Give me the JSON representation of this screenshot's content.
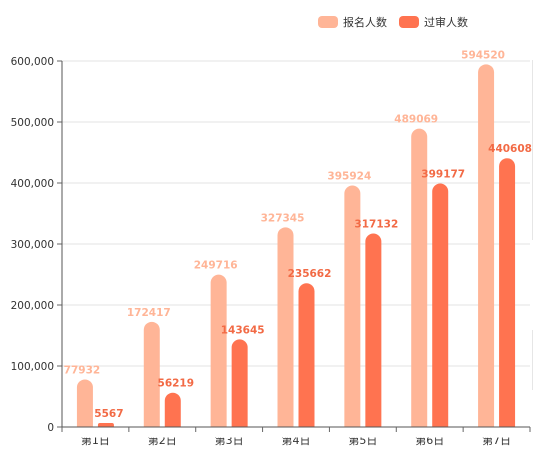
{
  "chart_data": {
    "type": "bar",
    "categories": [
      "第1日",
      "第2日",
      "第3日",
      "第4日",
      "第5日",
      "第6日",
      "第7日"
    ],
    "series": [
      {
        "name": "报名人数",
        "color": "#ffb597",
        "label_color": "#ffb597",
        "values": [
          77932,
          172417,
          249716,
          327345,
          395924,
          489069,
          594520
        ]
      },
      {
        "name": "过审人数",
        "color": "#ff7350",
        "label_color": "#f26a45",
        "values": [
          5567,
          56219,
          143645,
          235662,
          317132,
          399177,
          440608
        ]
      }
    ],
    "ylim": [
      0,
      600000
    ],
    "yticks": [
      "0",
      "100,000",
      "200,000",
      "300,000",
      "400,000",
      "500,000",
      "600,000"
    ],
    "ytick_values": [
      0,
      100000,
      200000,
      300000,
      400000,
      500000,
      600000
    ],
    "grid": true,
    "legend": "top-right",
    "title": "",
    "xlabel": "",
    "ylabel": ""
  }
}
